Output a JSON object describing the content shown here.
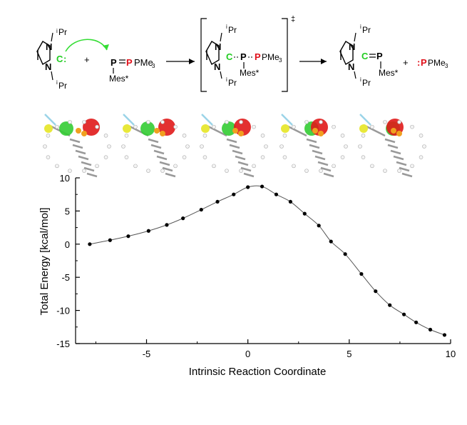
{
  "scheme": {
    "ipr": "Pr",
    "iprSup": "i",
    "nLabel": "N",
    "cLabel": "C",
    "colon": ":",
    "plus": "+",
    "pLabel": "P",
    "pme3": "PMe",
    "me3sub": "3",
    "mes": "Mes*",
    "ts": "‡",
    "pme3_product": "PMe",
    "colors": {
      "carbene": "#22cc22",
      "phosphine": "#e0101a",
      "arrow_green": "#33dd33"
    }
  },
  "chart_data": {
    "type": "scatter",
    "xlabel": "Intrinsic Reaction Coordinate",
    "ylabel": "Total Energy [kcal/mol]",
    "xlim": [
      -8.5,
      10
    ],
    "ylim": [
      -15,
      10
    ],
    "xticks": [
      -5,
      0,
      5,
      10
    ],
    "yticks": [
      10,
      5,
      0,
      -5,
      -10,
      -15
    ],
    "xtick_labels": [
      "-5",
      "0",
      "5",
      "10"
    ],
    "ytick_labels": [
      "10",
      "5",
      "0",
      "-5",
      "-10",
      "-15"
    ],
    "grid": false,
    "series": [
      {
        "x": [
          -7.8,
          -6.8,
          -5.9,
          -4.9,
          -4.0,
          -3.2,
          -2.3,
          -1.5,
          -0.7,
          0.0,
          0.7,
          1.4,
          2.1,
          2.8,
          3.5,
          4.1,
          4.8,
          5.6,
          6.3,
          7.0,
          7.7,
          8.3,
          9.0,
          9.7
        ],
        "y": [
          0.0,
          0.6,
          1.2,
          2.0,
          2.9,
          3.9,
          5.2,
          6.4,
          7.5,
          8.6,
          8.7,
          7.5,
          6.4,
          4.6,
          2.8,
          0.4,
          -1.5,
          -4.5,
          -7.1,
          -9.2,
          -10.6,
          -11.8,
          -12.9,
          -13.7
        ]
      }
    ]
  }
}
